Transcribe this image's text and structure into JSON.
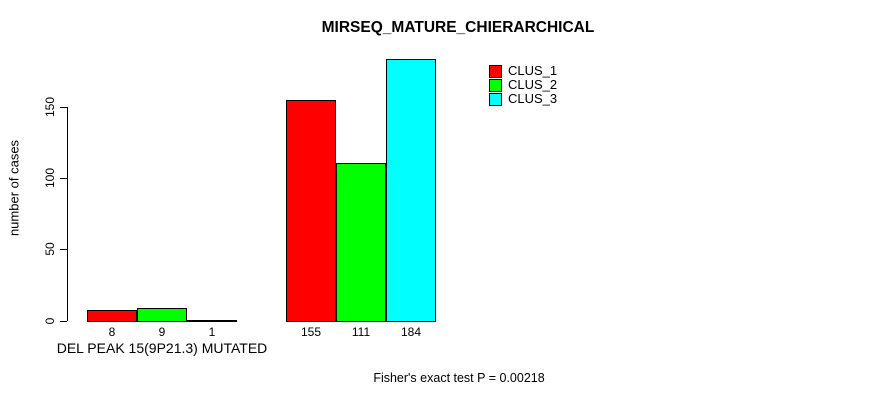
{
  "chart_data": {
    "type": "bar",
    "title": "MIRSEQ_MATURE_CHIERARCHICAL",
    "ylabel": "number of cases",
    "xlabel": "",
    "yticks": [
      0,
      50,
      100,
      150
    ],
    "ylim": [
      0,
      190
    ],
    "grid": false,
    "legend_position": "top-right",
    "background_color": "#ffffff",
    "series": [
      {
        "name": "CLUS_1",
        "color": "#ff0000"
      },
      {
        "name": "CLUS_2",
        "color": "#00ff00"
      },
      {
        "name": "CLUS_3",
        "color": "#00ffff"
      }
    ],
    "groups": [
      {
        "label": "DEL PEAK 15(9P21.3) MUTATED",
        "values": [
          8,
          9,
          1
        ]
      },
      {
        "label": "",
        "values": [
          155,
          111,
          184
        ]
      }
    ],
    "show_bar_values": true,
    "annotation": "Fisher's exact test P = 0.00218"
  }
}
